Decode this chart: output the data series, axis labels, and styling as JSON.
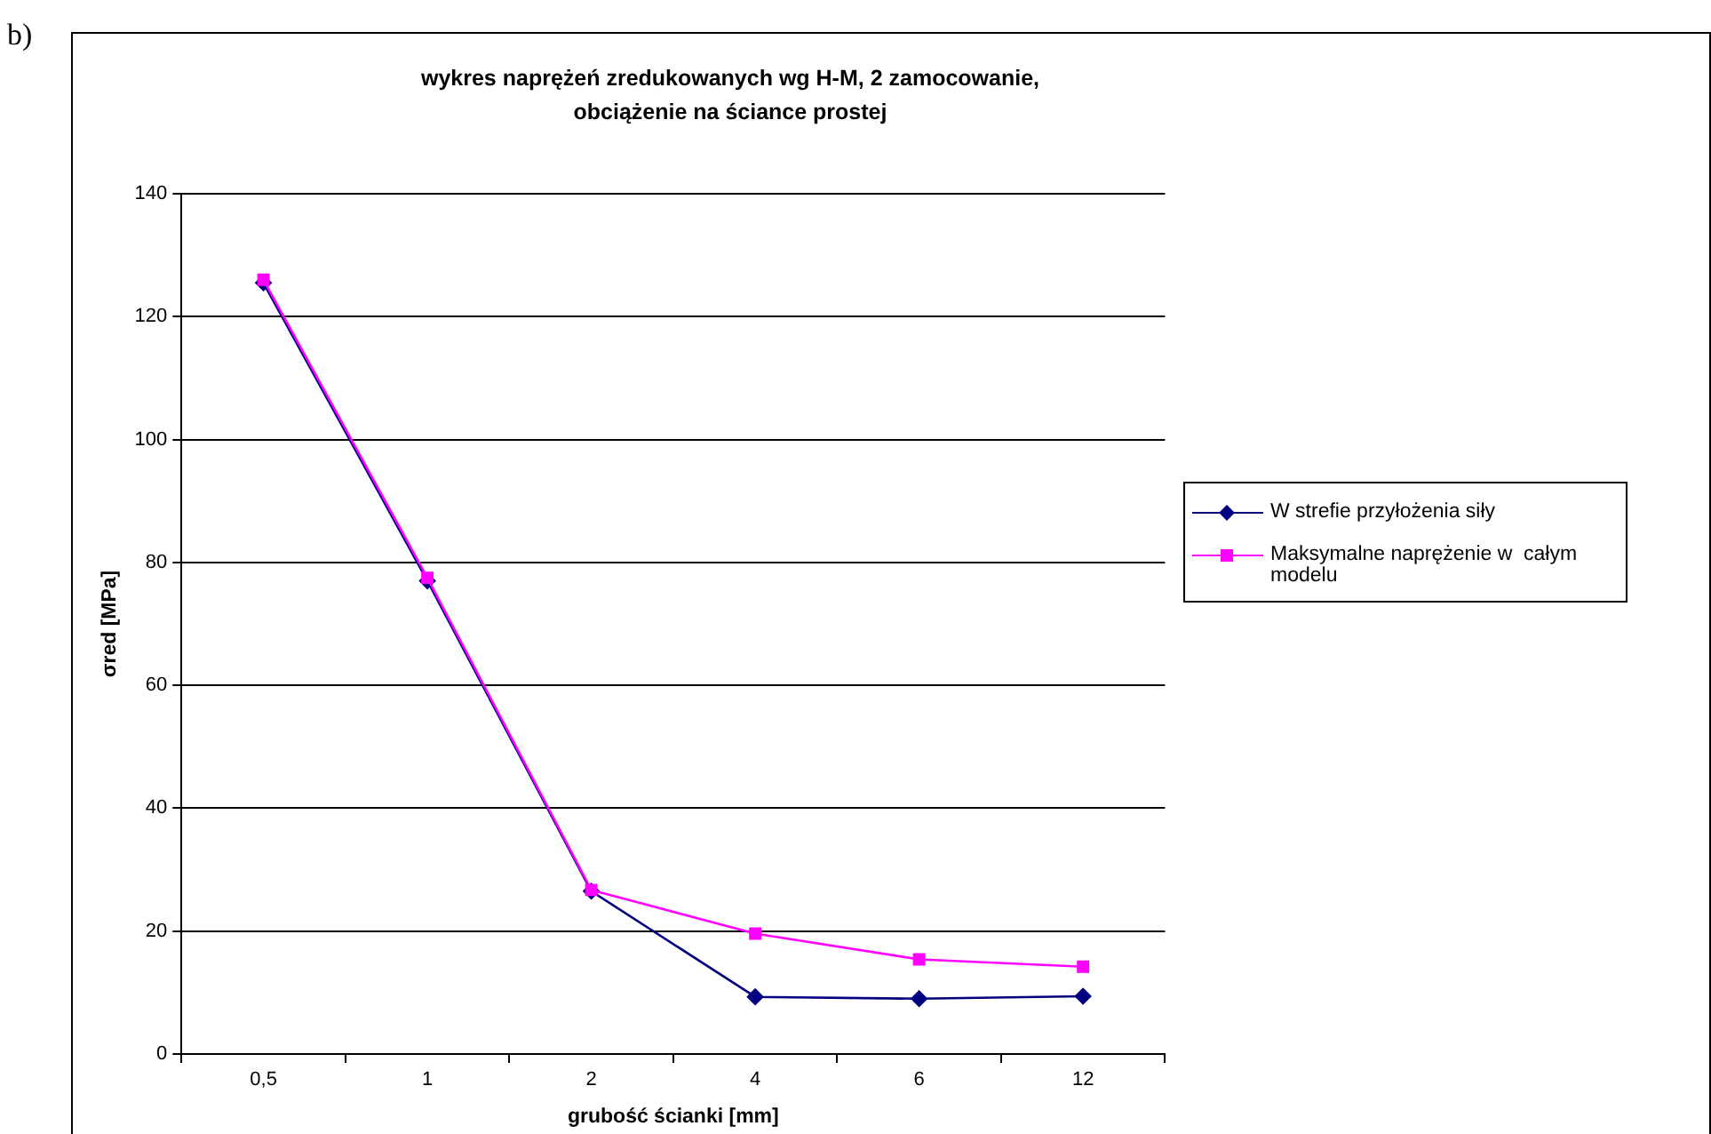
{
  "chart_data": {
    "type": "line",
    "title": "wykres naprężeń zredukowanych wg H-M, 2 zamocowanie,\nobciążenie na ściance prostej",
    "xlabel": "grubość ścianki [mm]",
    "ylabel": "σred [MPa]",
    "annotations": [
      "b)"
    ],
    "categories": [
      "0,5",
      "1",
      "2",
      "4",
      "6",
      "12"
    ],
    "series": [
      {
        "name": "W strefie przyłożenia siły",
        "color": "#000080",
        "marker": "diamond",
        "values": [
          125.5,
          77,
          26.5,
          9.3,
          9.0,
          9.4
        ]
      },
      {
        "name": "Maksymalne naprężenie w  całym modelu",
        "color": "#ff00ff",
        "marker": "square",
        "values": [
          126,
          77.5,
          26.7,
          19.6,
          15.4,
          14.2
        ]
      }
    ],
    "ylim": [
      0,
      140
    ],
    "yticks": [
      0,
      20,
      40,
      60,
      80,
      100,
      120,
      140
    ],
    "grid": "y",
    "legend": "right",
    "line_style": "solid"
  }
}
